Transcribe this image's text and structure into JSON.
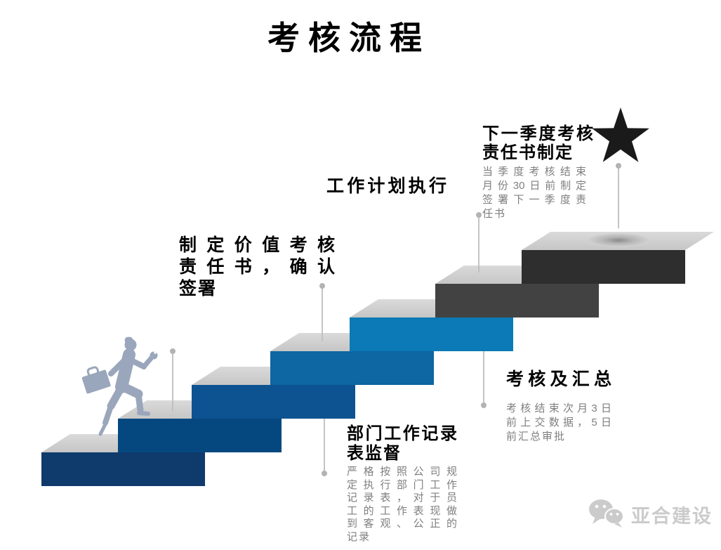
{
  "title": "考核流程",
  "colors": {
    "steps": [
      "#0e3a6c",
      "#05487f",
      "#0d5391",
      "#0e66a3",
      "#0b7ab6",
      "#424242",
      "#2e2e2e"
    ],
    "step_top_light": "#dadada",
    "step_top_dark": "#c6c6c6",
    "hole_center": "#8a8a8a",
    "hole_edge": "#d2d2d2",
    "connector_line": "#bdbdbd",
    "connector_dot": "#b3b3b3",
    "person": "#9aa6bb",
    "star": "#1a1a1a",
    "heading_text": "#000000",
    "body_text": "#7f7f7f",
    "watermark_text": "#cbcbcb"
  },
  "icons": {
    "summit": "star-icon",
    "watermark": "wechat-icon"
  },
  "stairs": {
    "step_count": 7
  },
  "stages": [
    {
      "key": "plan_sign",
      "heading_lines": [
        "制定价值考核",
        "责任书，确认",
        "签署"
      ],
      "body_lines": []
    },
    {
      "key": "dept_record",
      "heading_lines": [
        "部门工作记录",
        "表监督"
      ],
      "body_lines": [
        "严格按照公司规",
        "定执行部门工作",
        "记录表，对于员",
        "工的工作表现做",
        "到客观、公正的",
        "记录"
      ]
    },
    {
      "key": "plan_exec",
      "heading_lines": [
        "工作计划执行"
      ],
      "body_lines": []
    },
    {
      "key": "review_summary",
      "heading_lines": [
        "考核及汇总"
      ],
      "body_lines": [
        "考核结束次月3日",
        "前上交数据，5日",
        "前汇总审批"
      ]
    },
    {
      "key": "next_quarter",
      "heading_lines": [
        "下一季度考核",
        "责任书制定"
      ],
      "body_lines": [
        "当季度考核结束",
        "月份30日前制定",
        "签署下一季度责",
        "任书"
      ]
    }
  ],
  "watermark": {
    "brand": "亚合建设"
  }
}
